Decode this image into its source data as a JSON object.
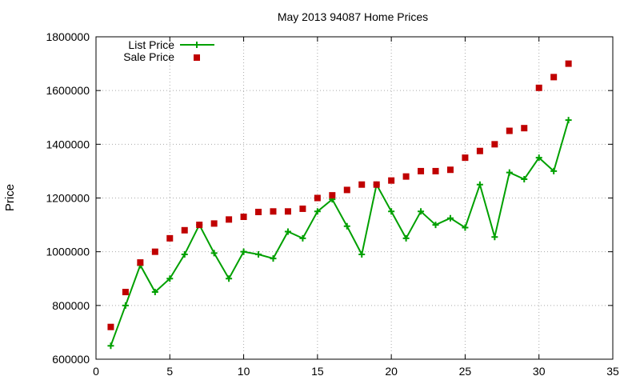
{
  "chart_data": {
    "type": "line",
    "title": "May 2013 94087 Home Prices",
    "xlabel": "",
    "ylabel": "Price",
    "xlim": [
      0,
      35
    ],
    "ylim": [
      600000,
      1800000
    ],
    "x_ticks": [
      "0",
      "5",
      "10",
      "15",
      "20",
      "25",
      "30",
      "35"
    ],
    "y_ticks": [
      "600000",
      "800000",
      "1000000",
      "1200000",
      "1400000",
      "1600000",
      "1800000"
    ],
    "grid": true,
    "legend_position": "top-left",
    "x": [
      1,
      2,
      3,
      4,
      5,
      6,
      7,
      8,
      9,
      10,
      11,
      12,
      13,
      14,
      15,
      16,
      17,
      18,
      19,
      20,
      21,
      22,
      23,
      24,
      25,
      26,
      27,
      28,
      29,
      30,
      31,
      32
    ],
    "series": [
      {
        "name": "List Price",
        "style": "line-with-plus-markers",
        "color": "#00a000",
        "values": [
          650000,
          800000,
          950000,
          850000,
          900000,
          990000,
          1100000,
          995000,
          900000,
          1000000,
          990000,
          975000,
          1075000,
          1050000,
          1150000,
          1195000,
          1095000,
          990000,
          1250000,
          1150000,
          1050000,
          1150000,
          1100000,
          1125000,
          1090000,
          1250000,
          1055000,
          1295000,
          1270000,
          1350000,
          1300000,
          1490000
        ]
      },
      {
        "name": "Sale Price",
        "style": "square-markers",
        "color": "#c00000",
        "values": [
          720000,
          850000,
          960000,
          1000000,
          1050000,
          1080000,
          1100000,
          1105000,
          1120000,
          1130000,
          1148000,
          1150000,
          1150000,
          1160000,
          1200000,
          1210000,
          1230000,
          1250000,
          1250000,
          1265000,
          1280000,
          1300000,
          1300000,
          1305000,
          1350000,
          1375000,
          1400000,
          1450000,
          1460000,
          1610000,
          1650000,
          1700000
        ]
      }
    ]
  }
}
